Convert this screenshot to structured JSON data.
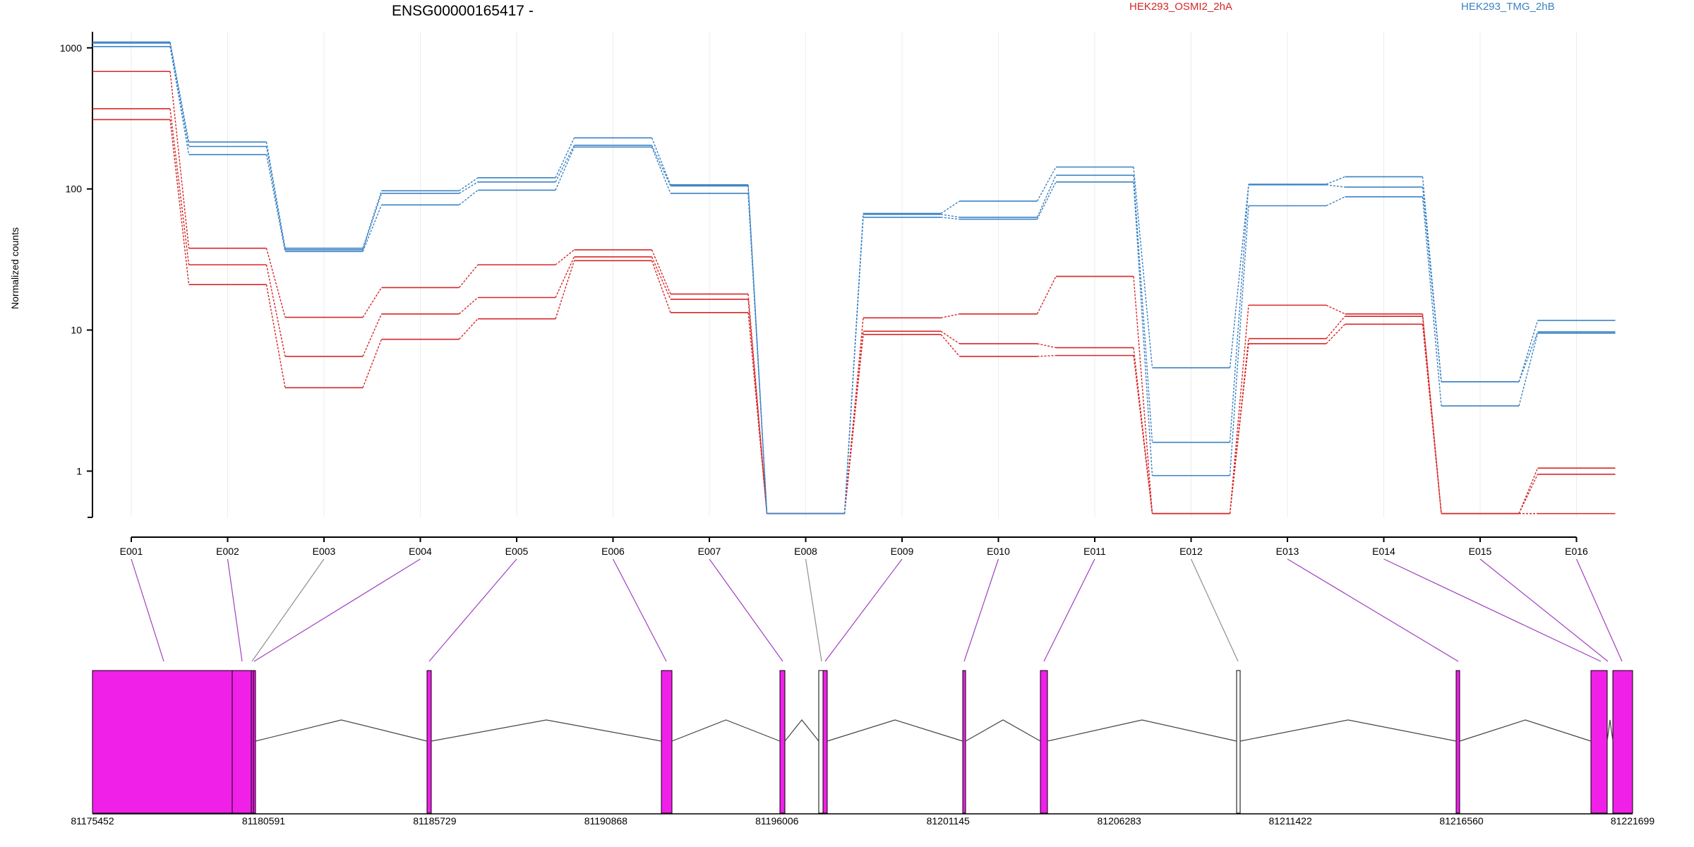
{
  "chart_data": {
    "type": "line",
    "title": "ENSG00000165417 -",
    "ylabel": "Normalized counts",
    "xlabel": "",
    "yscale": "log",
    "ylim": [
      0.47,
      1300
    ],
    "yticks": [
      1,
      10,
      100,
      1000
    ],
    "ytick_labels": [
      "1",
      "10",
      "100",
      "1000"
    ],
    "grid": "vertical",
    "legend_placement": "top",
    "categories": [
      "E001",
      "E002",
      "E003",
      "E004",
      "E005",
      "E006",
      "E007",
      "E008",
      "E009",
      "E010",
      "E011",
      "E012",
      "E013",
      "E014",
      "E015",
      "E016"
    ],
    "groups": [
      {
        "name": "HEK293_OSMI2_2hA",
        "color": "#d62728"
      },
      {
        "name": "HEK293_TMG_2hB",
        "color": "#3b82c4"
      }
    ],
    "series": [
      {
        "group": 0,
        "values": [
          680,
          38,
          12.3,
          20,
          29,
          37,
          18,
          0.5,
          12.2,
          13,
          24,
          0.5,
          15,
          13,
          0.5,
          0.5
        ]
      },
      {
        "group": 0,
        "values": [
          370,
          29,
          6.5,
          13,
          17,
          33,
          16.5,
          0.5,
          9.8,
          8,
          7.5,
          0.5,
          8.7,
          12.5,
          0.5,
          1.05
        ]
      },
      {
        "group": 0,
        "values": [
          310,
          21,
          3.9,
          8.6,
          12,
          31,
          13.3,
          0.5,
          9.3,
          6.5,
          6.6,
          0.5,
          8,
          11,
          0.5,
          0.95
        ]
      },
      {
        "group": 1,
        "values": [
          1100,
          215,
          38,
          97,
          120,
          230,
          107,
          0.5,
          67,
          82,
          143,
          5.4,
          108,
          122,
          4.3,
          11.7
        ]
      },
      {
        "group": 1,
        "values": [
          1080,
          200,
          37,
          93,
          112,
          204,
          105,
          0.5,
          66,
          63,
          125,
          1.6,
          107,
          103,
          4.3,
          9.7
        ]
      },
      {
        "group": 1,
        "values": [
          1020,
          175,
          36,
          77,
          98,
          198,
          93,
          0.5,
          63,
          61,
          112,
          0.93,
          76,
          88,
          2.9,
          9.5
        ]
      }
    ],
    "gene_model": {
      "coord_ticks": [
        "81175452",
        "81180591",
        "81185729",
        "81190868",
        "81196006",
        "81201145",
        "81206283",
        "81211422",
        "81216560",
        "81221699"
      ],
      "exon_fill": "#f020e8"
    }
  }
}
